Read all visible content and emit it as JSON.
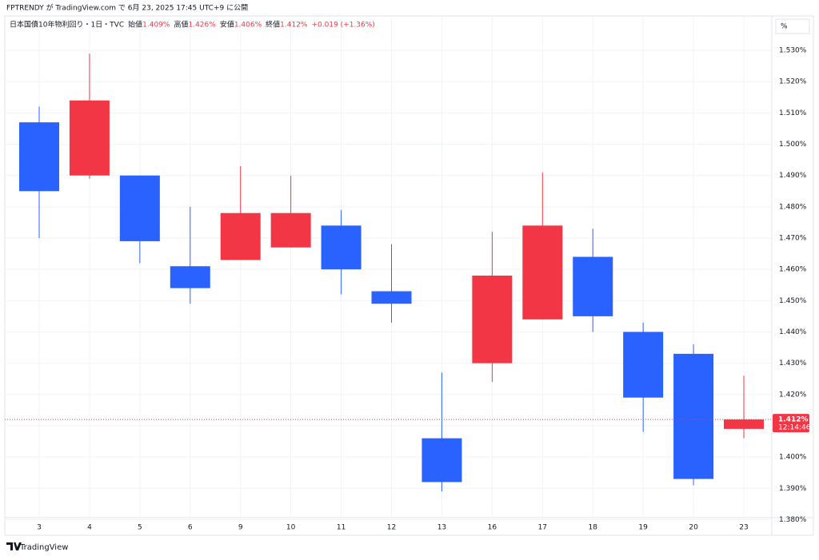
{
  "header": {
    "byline": "FPTRENDY が TradingView.com で 6月 23, 2025 17:45 UTC+9 に公開",
    "logo": "TradingView"
  },
  "chart_data": {
    "type": "candlestick",
    "legend": {
      "symbol": "日本国債10年物利回り・1日・TVC",
      "open_label": "始値",
      "open": "1.409%",
      "high_label": "高値",
      "high": "1.426%",
      "low_label": "安値",
      "low": "1.406%",
      "close_label": "終値",
      "close": "1.412%",
      "change": "+0.019 (+1.36%)"
    },
    "unit": "%",
    "categories": [
      "3",
      "4",
      "5",
      "6",
      "9",
      "10",
      "11",
      "12",
      "13",
      "16",
      "17",
      "18",
      "19",
      "20",
      "23"
    ],
    "open": [
      1.507,
      1.49,
      1.49,
      1.461,
      1.463,
      1.467,
      1.474,
      1.453,
      1.406,
      1.43,
      1.444,
      1.464,
      1.44,
      1.433,
      1.409
    ],
    "high": [
      1.512,
      1.529,
      1.49,
      1.48,
      1.493,
      1.49,
      1.479,
      1.468,
      1.427,
      1.472,
      1.491,
      1.473,
      1.443,
      1.436,
      1.426
    ],
    "low": [
      1.47,
      1.489,
      1.462,
      1.449,
      1.463,
      1.467,
      1.452,
      1.443,
      1.389,
      1.424,
      1.444,
      1.44,
      1.408,
      1.391,
      1.406
    ],
    "close": [
      1.485,
      1.514,
      1.469,
      1.454,
      1.478,
      1.478,
      1.46,
      1.449,
      1.392,
      1.458,
      1.474,
      1.445,
      1.419,
      1.393,
      1.412
    ],
    "up_color": "#f23645",
    "down_color": "#2962ff",
    "ylim": [
      1.375,
      1.541
    ],
    "yticks": [
      {
        "value": 1.38,
        "label": "1.380%"
      },
      {
        "value": 1.39,
        "label": "1.390%"
      },
      {
        "value": 1.4,
        "label": "1.400%"
      },
      {
        "value": 1.41,
        "label": "1.410%"
      },
      {
        "value": 1.42,
        "label": "1.420%"
      },
      {
        "value": 1.43,
        "label": "1.430%"
      },
      {
        "value": 1.44,
        "label": "1.440%"
      },
      {
        "value": 1.45,
        "label": "1.450%"
      },
      {
        "value": 1.46,
        "label": "1.460%"
      },
      {
        "value": 1.47,
        "label": "1.470%"
      },
      {
        "value": 1.48,
        "label": "1.480%"
      },
      {
        "value": 1.49,
        "label": "1.490%"
      },
      {
        "value": 1.5,
        "label": "1.500%"
      },
      {
        "value": 1.51,
        "label": "1.510%"
      },
      {
        "value": 1.52,
        "label": "1.520%"
      },
      {
        "value": 1.53,
        "label": "1.530%"
      }
    ],
    "last_price": {
      "value": 1.412,
      "label": "1.412%"
    },
    "countdown": "12:14:46",
    "grid": true
  }
}
